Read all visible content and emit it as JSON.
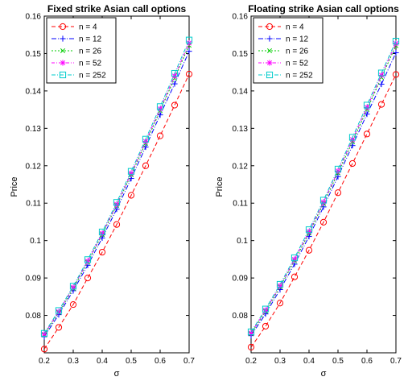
{
  "chart_data": [
    {
      "type": "line",
      "title": "Fixed strike Asian call options",
      "xlabel": "σ",
      "ylabel": "Price",
      "xlim": [
        0.2,
        0.7
      ],
      "ylim": [
        0.07,
        0.16
      ],
      "xticks": [
        "0.2",
        "0.3",
        "0.4",
        "0.5",
        "0.6",
        "0.7"
      ],
      "yticks": [
        "0.08",
        "0.09",
        "0.1",
        "0.11",
        "0.12",
        "0.13",
        "0.14",
        "0.15",
        "0.16"
      ],
      "legend_position": "top-left",
      "grid": false,
      "x": [
        0.2,
        0.25,
        0.3,
        0.35,
        0.4,
        0.45,
        0.5,
        0.55,
        0.6,
        0.65,
        0.7
      ],
      "series": [
        {
          "name": "n = 4",
          "color": "#ff0000",
          "marker": "circle",
          "dash": "5,3",
          "values": [
            0.071,
            0.0768,
            0.0829,
            0.09,
            0.0969,
            0.1043,
            0.1121,
            0.12,
            0.128,
            0.1362,
            0.1445
          ]
        },
        {
          "name": "n = 12",
          "color": "#0000ff",
          "marker": "plus",
          "dash": "6,2,1,2",
          "values": [
            0.0743,
            0.0802,
            0.0866,
            0.0934,
            0.1007,
            0.1084,
            0.1166,
            0.125,
            0.1336,
            0.1419,
            0.1506
          ]
        },
        {
          "name": "n = 26",
          "color": "#00cc00",
          "marker": "x",
          "dash": "2,2",
          "values": [
            0.0748,
            0.0808,
            0.0872,
            0.0942,
            0.1016,
            0.1094,
            0.1176,
            0.126,
            0.1347,
            0.1434,
            0.1522
          ]
        },
        {
          "name": "n = 52",
          "color": "#ff00ff",
          "marker": "star",
          "dash": "4,2,1,2",
          "values": [
            0.075,
            0.081,
            0.0875,
            0.0945,
            0.1019,
            0.1097,
            0.118,
            0.1265,
            0.1352,
            0.144,
            0.1528
          ]
        },
        {
          "name": "n = 252",
          "color": "#00cccc",
          "marker": "square",
          "dash": "5,2,1,2",
          "values": [
            0.0752,
            0.0813,
            0.0878,
            0.0949,
            0.1023,
            0.1102,
            0.1185,
            0.1271,
            0.1358,
            0.1447,
            0.1536
          ]
        }
      ]
    },
    {
      "type": "line",
      "title": "Floating strike Asian call options",
      "xlabel": "σ",
      "ylabel": "Price",
      "xlim": [
        0.2,
        0.7
      ],
      "ylim": [
        0.07,
        0.16
      ],
      "xticks": [
        "0.2",
        "0.3",
        "0.4",
        "0.5",
        "0.6",
        "0.7"
      ],
      "yticks": [
        "0.08",
        "0.09",
        "0.1",
        "0.11",
        "0.12",
        "0.13",
        "0.14",
        "0.15",
        "0.16"
      ],
      "legend_position": "top-left",
      "grid": false,
      "x": [
        0.2,
        0.25,
        0.3,
        0.35,
        0.4,
        0.45,
        0.5,
        0.55,
        0.6,
        0.65,
        0.7
      ],
      "series": [
        {
          "name": "n = 4",
          "color": "#ff0000",
          "marker": "circle",
          "dash": "5,3",
          "values": [
            0.0715,
            0.0771,
            0.0833,
            0.0903,
            0.0974,
            0.1049,
            0.1128,
            0.1206,
            0.1285,
            0.1364,
            0.1444
          ]
        },
        {
          "name": "n = 12",
          "color": "#0000ff",
          "marker": "plus",
          "dash": "6,2,1,2",
          "values": [
            0.0746,
            0.0804,
            0.0869,
            0.0937,
            0.1011,
            0.109,
            0.1171,
            0.1254,
            0.1338,
            0.1418,
            0.1502
          ]
        },
        {
          "name": "n = 26",
          "color": "#00cc00",
          "marker": "x",
          "dash": "2,2",
          "values": [
            0.0751,
            0.0811,
            0.0876,
            0.0946,
            0.102,
            0.1099,
            0.1181,
            0.1264,
            0.135,
            0.1436,
            0.1521
          ]
        },
        {
          "name": "n = 52",
          "color": "#ff00ff",
          "marker": "star",
          "dash": "4,2,1,2",
          "values": [
            0.0753,
            0.0814,
            0.0879,
            0.095,
            0.1024,
            0.1103,
            0.1186,
            0.127,
            0.1356,
            0.1442,
            0.1527
          ]
        },
        {
          "name": "n = 252",
          "color": "#00cccc",
          "marker": "square",
          "dash": "5,2,1,2",
          "values": [
            0.0756,
            0.0817,
            0.0883,
            0.0954,
            0.1029,
            0.1108,
            0.1191,
            0.1276,
            0.1362,
            0.1448,
            0.1533
          ]
        }
      ]
    }
  ]
}
